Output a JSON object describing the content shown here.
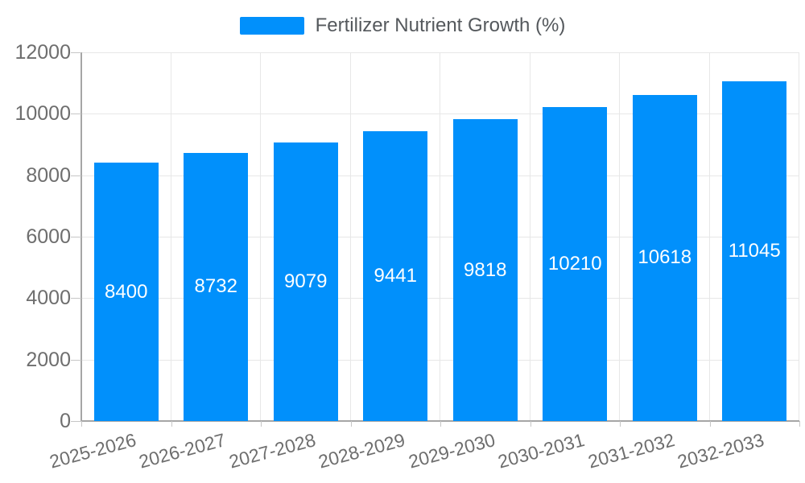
{
  "legend": {
    "label": "Fertilizer Nutrient Growth (%)"
  },
  "chart_data": {
    "type": "bar",
    "title": "Fertilizer Nutrient Growth (%)",
    "categories": [
      "2025-2026",
      "2026-2027",
      "2027-2028",
      "2028-2029",
      "2029-2030",
      "2030-2031",
      "2031-2032",
      "2032-2033"
    ],
    "values": [
      8400,
      8732,
      9079,
      9441,
      9818,
      10210,
      10618,
      11045
    ],
    "xlabel": "",
    "ylabel": "",
    "ylim": [
      0,
      12000
    ],
    "yticks": [
      0,
      2000,
      4000,
      6000,
      8000,
      10000,
      12000
    ],
    "legend_position": "top",
    "grid": "horizontal-and-vertical",
    "colors": {
      "bar": "#0190fb",
      "grid": "#e7e7e7",
      "axis_border": "#a6a6a6",
      "tick": "#c6c6c6",
      "axis_label": "#6e6e6e",
      "value_label": "#ffffff",
      "legend_text": "#54585c"
    }
  }
}
